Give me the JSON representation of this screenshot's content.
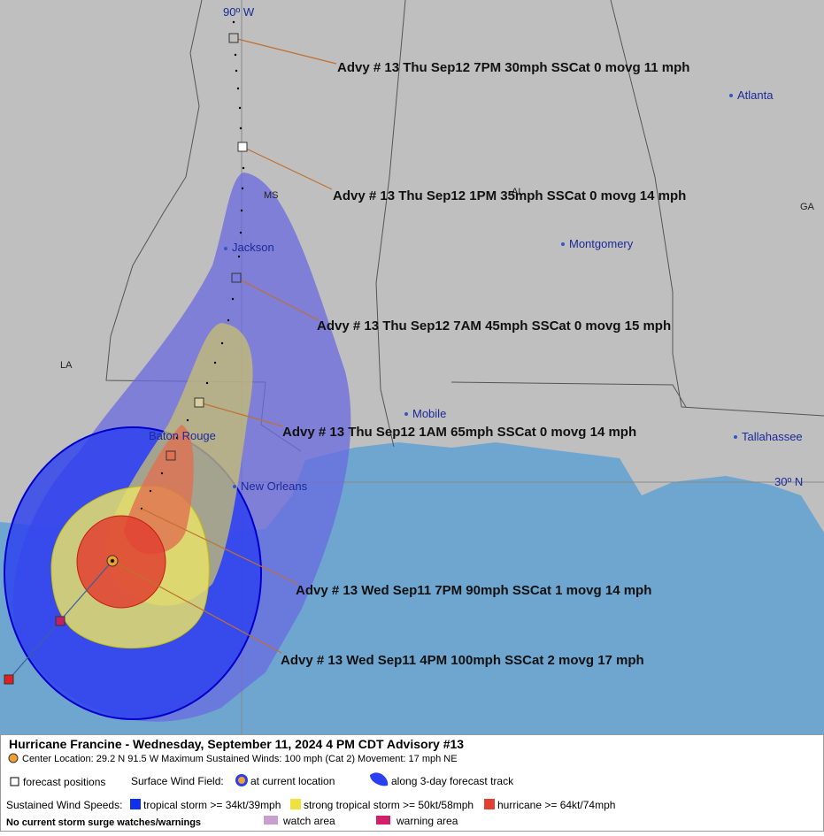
{
  "map": {
    "grid_labels": [
      "90º W",
      "30º N"
    ],
    "states": [
      "MS",
      "AL",
      "GA",
      "LA"
    ],
    "cities": [
      "Atlanta",
      "Jackson",
      "Montgomery",
      "Mobile",
      "Baton Rouge",
      "New Orleans",
      "Tallahassee"
    ],
    "advisories": [
      "Advy # 13 Thu Sep12 7PM  30mph SSCat 0 movg 11 mph",
      "Advy # 13 Thu Sep12 1PM  35mph SSCat 0 movg 14 mph",
      "Advy # 13 Thu Sep12 7AM  45mph SSCat 0 movg 15 mph",
      "Advy # 13 Thu Sep12 1AM  65mph SSCat 0 movg 14 mph",
      "Advy # 13 Wed Sep11 7PM  90mph SSCat 1 movg 14 mph",
      "Advy # 13 Wed Sep11 4PM  100mph SSCat 2 movg 17 mph"
    ]
  },
  "legend": {
    "title": "Hurricane Francine  -  Wednesday, September 11, 2024  4 PM CDT   Advisory #13",
    "center": "Center Location: 29.2 N  91.5 W   Maximum Sustained Winds: 100 mph (Cat 2) Movement: 17 mph NE",
    "forecast_positions": "forecast positions",
    "surface_wind_field": "Surface Wind Field:",
    "at_current_location": "at current location",
    "along_track": "along 3-day forecast track",
    "sustained_wind_speeds": "Sustained Wind Speeds:",
    "tropical_storm": "tropical storm >= 34kt/39mph",
    "strong_tropical_storm": "strong tropical storm >= 50kt/58mph",
    "hurricane": "hurricane >= 64kt/74mph",
    "surge": "No current storm surge watches/warnings",
    "watch": "watch area",
    "warning": "warning area"
  }
}
